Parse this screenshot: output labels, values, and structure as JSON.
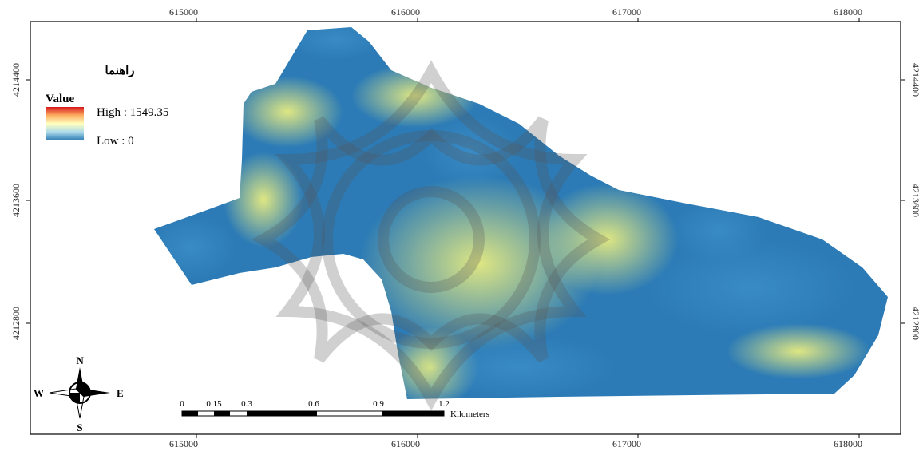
{
  "map": {
    "x_ticks": [
      "615000",
      "616000",
      "617000",
      "618000"
    ],
    "y_ticks": [
      "4214400",
      "4213600",
      "4212800"
    ]
  },
  "legend": {
    "heading": "راهنما",
    "title": "Value",
    "high": "High : 1549.35",
    "low": "Low : 0",
    "colors": [
      "#d7191c",
      "#fdae61",
      "#ffffbf",
      "#abd9e9",
      "#2c7bb6"
    ]
  },
  "scalebar": {
    "ticks": [
      "0",
      "0.15",
      "0.3",
      "0.6",
      "0.9",
      "1.2"
    ],
    "unit": "Kilometers"
  },
  "compass": {
    "n": "N",
    "s": "S",
    "e": "E",
    "w": "W"
  },
  "raster_colors": {
    "low": "#2c7bb6",
    "mid": "#abd9e9",
    "high": "#ffffbf"
  }
}
